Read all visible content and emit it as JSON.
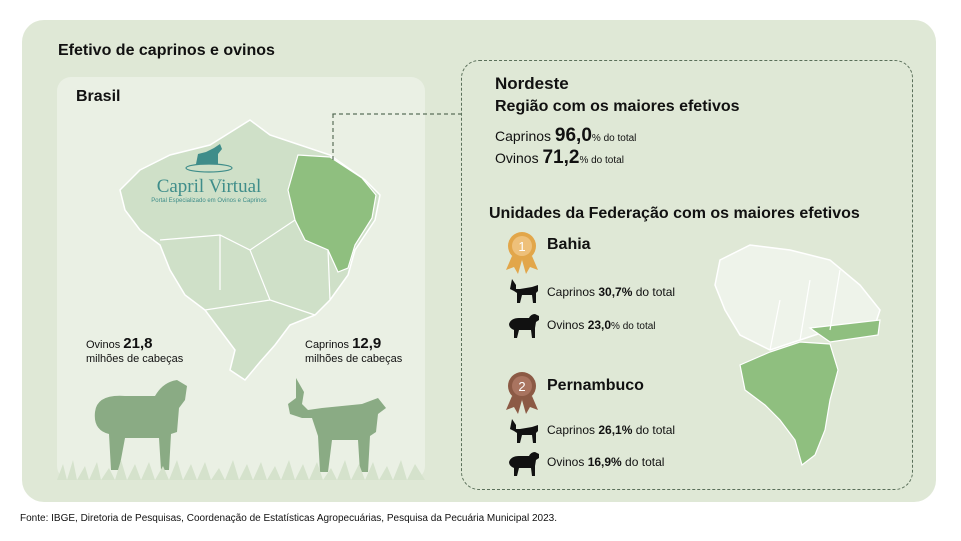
{
  "title": "Efetivo de caprinos e ovinos",
  "brasil": {
    "label": "Brasil",
    "logo_main": "Capril Virtual",
    "logo_sub": "Portal Especializado em Ovinos e Caprinos",
    "ovinos": {
      "prefix": "Ovinos ",
      "value": "21,8",
      "unit": "milhões de cabeças"
    },
    "caprinos": {
      "prefix": "Caprinos ",
      "value": "12,9",
      "unit": "milhões de cabeças"
    }
  },
  "nordeste": {
    "title": "Nordeste",
    "subtitle": "Região com os maiores efetivos",
    "caprinos": {
      "label": "Caprinos ",
      "value": "96,0",
      "suffix": "% do total"
    },
    "ovinos": {
      "label": "Ovinos ",
      "value": "71,2",
      "suffix": "% do total"
    }
  },
  "uf": {
    "title": "Unidades da Federação com os maiores efetivos",
    "items": [
      {
        "rank": "1",
        "name": "Bahia",
        "caprinos": {
          "label": "Caprinos ",
          "value": "30,7%",
          "suffix": " do total"
        },
        "ovinos": {
          "label": "Ovinos ",
          "value": "23,0",
          "suffix": "% do total"
        },
        "medal_color": "#e2a64a"
      },
      {
        "rank": "2",
        "name": "Pernambuco",
        "caprinos": {
          "label": "Caprinos ",
          "value": "26,1%",
          "suffix": " do total"
        },
        "ovinos": {
          "label": "Ovinos ",
          "value": "16,9%",
          "suffix": " do total"
        },
        "medal_color": "#8c5a45"
      }
    ]
  },
  "colors": {
    "card_bg": "#dfe8d6",
    "highlight_green": "#8fbf7f",
    "map_light": "#e6efe0",
    "animal_green": "#8aab84"
  },
  "footer": "Fonte: IBGE, Diretoria de Pesquisas, Coordenação de Estatísticas Agropecuárias, Pesquisa da Pecuária Municipal 2023."
}
